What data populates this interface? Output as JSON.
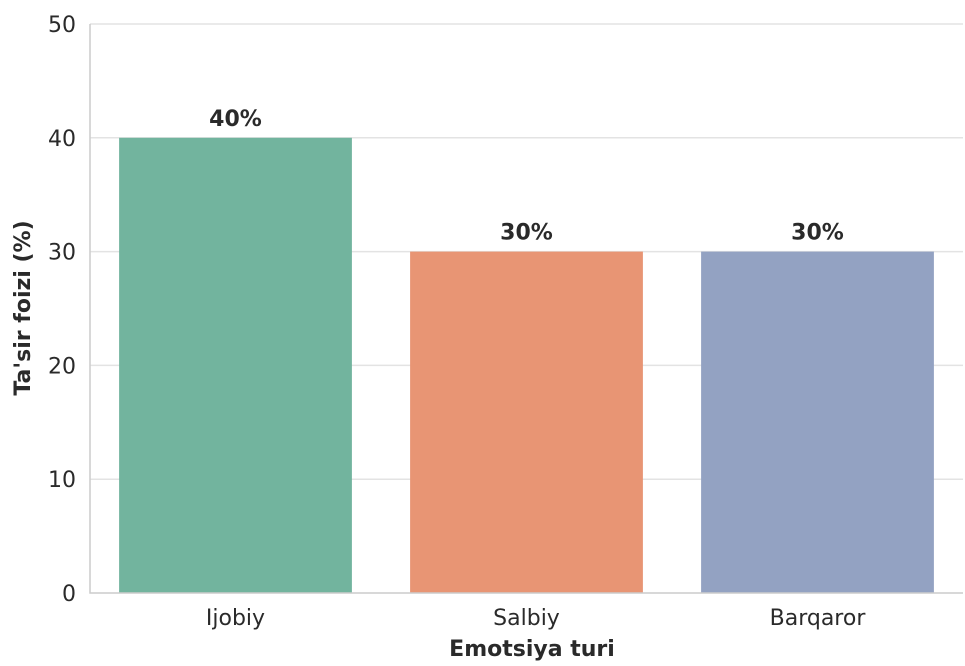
{
  "chart_data": {
    "type": "bar",
    "title": "",
    "xlabel": "Emotsiya turi",
    "ylabel": "Ta'sir foizi (%)",
    "categories": [
      "Ijobiy",
      "Salbiy",
      "Barqaror"
    ],
    "values": [
      40,
      30,
      30
    ],
    "data_labels": [
      "40%",
      "30%",
      "30%"
    ],
    "colors": [
      "#72b49e",
      "#e89574",
      "#93a2c2"
    ],
    "ylim": [
      0,
      50
    ],
    "yticks": [
      0,
      10,
      20,
      30,
      40,
      50
    ],
    "grid": true,
    "legend": "none"
  }
}
